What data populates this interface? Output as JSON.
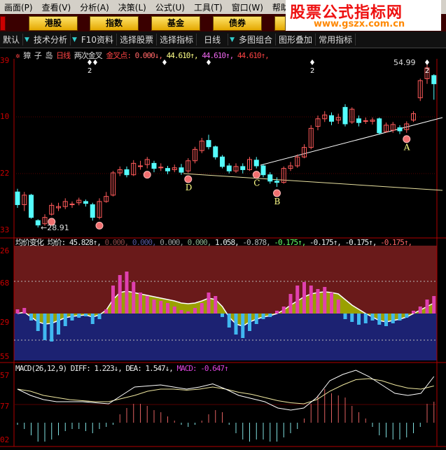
{
  "menu": [
    "画面(P)",
    "查看(V)",
    "分析(A)",
    "决策(L)",
    "公式(U)",
    "工具(T)",
    "窗口(W)",
    "帮助"
  ],
  "market_buttons": [
    "港股",
    "指数",
    "基金",
    "债券"
  ],
  "toolbar": [
    "默认",
    "技术分析",
    "F10资料",
    "选择股票",
    "选择指标",
    "日线",
    "多图组合",
    "图形叠加",
    "常用指标"
  ],
  "watermark": {
    "title": "股票公式指标网",
    "url": "www.gszx.com.cn"
  },
  "main_title": {
    "name": "獐 子 岛",
    "period": "日线",
    "indicator": "两次金叉",
    "label": "金叉点:",
    "v1": "0.000↓,",
    "v2": "44.610↑,",
    "v3": "44.610↑,",
    "v4": "44.610↑,"
  },
  "main_axis": [
    "39",
    "10",
    "22",
    "33"
  ],
  "annotations": {
    "high": "54.99",
    "low": "28.91",
    "points": [
      "D",
      "C",
      "B",
      "A"
    ],
    "count": "2"
  },
  "mid_title": {
    "name": "均价变化",
    "label": "均价:",
    "values": [
      "45.828↑,",
      "0.000,",
      "0.000,",
      "0.000,",
      "0.000,",
      "1.058,",
      "-0.878,",
      "-0.175↑,",
      "-0.175↑,",
      "-0.175↑,",
      "-0.175↑,"
    ]
  },
  "mid_axis": [
    "26",
    "68",
    "29",
    "55"
  ],
  "macd_title": {
    "name": "MACD(26,12,9)",
    "diff": "DIFF: 1.223↓,",
    "dea": "DEA: 1.547↓,",
    "macd": "MACD: -0.647↑"
  },
  "macd_axis": [
    "57",
    "77",
    "02"
  ],
  "colors": {
    "up": "#ff5a5a",
    "down": "#54fcfc",
    "frame": "#b00000",
    "mid_top": "#6a1a1a",
    "mid_bottom": "#1c2272",
    "area": "#9aa000"
  },
  "chart_data": [
    {
      "type": "candlestick",
      "ohlc": [
        [
          34.5,
          32.5,
          35,
          32
        ],
        [
          32.5,
          34,
          34.5,
          31.5
        ],
        [
          34,
          30.5,
          34.2,
          30.3
        ],
        [
          30,
          29.3,
          30.2,
          28.91
        ],
        [
          29.5,
          30.5,
          31,
          29.2
        ],
        [
          31,
          32.4,
          32.8,
          30.8
        ],
        [
          32,
          32.2,
          32.8,
          31.5
        ],
        [
          32.2,
          33,
          33.5,
          31.8
        ],
        [
          32.5,
          32.6,
          33,
          32
        ],
        [
          32.8,
          33.2,
          33.6,
          32.4
        ],
        [
          33,
          32.7,
          33.3,
          32.2
        ],
        [
          32.5,
          30.5,
          32.8,
          30
        ],
        [
          30.5,
          33,
          33.5,
          30.2
        ],
        [
          33,
          33.8,
          34.5,
          32.8
        ],
        [
          34,
          37.5,
          37.8,
          33.8
        ],
        [
          37.5,
          38,
          38.5,
          37
        ],
        [
          38,
          37.2,
          38.5,
          36.8
        ],
        [
          37.2,
          39,
          39.5,
          37
        ],
        [
          38.5,
          38.6,
          39.4,
          38
        ],
        [
          38.8,
          39.6,
          40,
          38.2
        ],
        [
          39,
          38.2,
          39.4,
          37.6
        ],
        [
          38.3,
          38.4,
          39,
          37.8
        ],
        [
          38.2,
          37.8,
          38.6,
          37.3
        ],
        [
          38,
          38.3,
          38.8,
          37.6
        ],
        [
          38.3,
          37.6,
          38.9,
          37.2
        ],
        [
          37.8,
          39.4,
          39.8,
          37.5
        ],
        [
          39.4,
          41.2,
          41.6,
          39
        ],
        [
          41,
          42.5,
          43,
          40.6
        ],
        [
          42.6,
          41.6,
          43.5,
          41.2
        ],
        [
          41.6,
          40,
          41.8,
          39.6
        ],
        [
          40,
          38.5,
          40.3,
          38.2
        ],
        [
          38.6,
          37.8,
          39,
          37.4
        ],
        [
          37.8,
          38.5,
          39,
          37.5
        ],
        [
          38.5,
          38,
          39,
          37.4
        ],
        [
          38,
          39.6,
          40,
          37.8
        ],
        [
          39.5,
          38.6,
          40,
          38.2
        ],
        [
          38.6,
          37.2,
          38.9,
          36.8
        ],
        [
          37.2,
          36.2,
          37.6,
          35.8
        ],
        [
          36.2,
          36,
          36.8,
          35.3
        ],
        [
          36,
          38.2,
          38.5,
          35.8
        ],
        [
          38.2,
          38.6,
          39.2,
          37.8
        ],
        [
          38.6,
          40,
          40.4,
          38.3
        ],
        [
          40,
          41.5,
          42,
          39.8
        ],
        [
          41.5,
          44.5,
          45,
          41.2
        ],
        [
          44.8,
          46,
          46.5,
          44.2
        ],
        [
          46,
          46.6,
          47.2,
          45.5
        ],
        [
          46.5,
          45.6,
          47,
          45
        ],
        [
          45.8,
          46.2,
          46.8,
          45.2
        ],
        [
          47.8,
          45.2,
          48.3,
          44.8
        ],
        [
          45.5,
          47.5,
          47.8,
          45.2
        ],
        [
          46,
          45.4,
          46.5,
          44.8
        ],
        [
          45.6,
          45.7,
          46.2,
          45.2
        ],
        [
          45.6,
          45.8,
          46.2,
          45.1
        ],
        [
          46,
          43.8,
          46.2,
          43.5
        ],
        [
          44,
          45,
          45.4,
          43.8
        ],
        [
          44.2,
          45.1,
          45.5,
          43.8
        ],
        [
          44.6,
          44.1,
          45,
          43.6
        ],
        [
          44.3,
          45.2,
          45.6,
          43.8
        ],
        [
          45.8,
          46.8,
          47.2,
          45.5
        ],
        [
          49.3,
          52,
          52.3,
          48.8
        ],
        [
          52.3,
          54,
          54.99,
          51.5
        ],
        [
          52.8,
          51.5,
          53,
          49
        ]
      ],
      "signal_candles": [
        5,
        12,
        19,
        25,
        35,
        38,
        57
      ],
      "marked_candles": {
        "D": 25,
        "C": 35,
        "B": 38,
        "A": 57
      }
    },
    {
      "type": "bar",
      "name": "均价变化",
      "area": [
        0,
        2,
        -5,
        -12,
        -15,
        -14,
        -10,
        -6,
        -4,
        -3,
        -2,
        -5,
        -2,
        5,
        20,
        30,
        32,
        30,
        28,
        26,
        24,
        22,
        20,
        18,
        15,
        14,
        15,
        18,
        22,
        20,
        10,
        -5,
        -15,
        -18,
        -12,
        -8,
        -5,
        -3,
        0,
        5,
        12,
        18,
        24,
        28,
        30,
        31,
        30,
        28,
        20,
        12,
        6,
        0,
        -5,
        -10,
        -12,
        -10,
        -8,
        -5,
        0,
        5,
        10,
        15
      ],
      "bars": [
        6,
        8,
        -10,
        -25,
        -38,
        -40,
        -30,
        -18,
        -10,
        -6,
        -4,
        -15,
        -8,
        6,
        40,
        55,
        60,
        45,
        30,
        25,
        20,
        18,
        15,
        10,
        5,
        3,
        8,
        15,
        30,
        25,
        -5,
        -20,
        -30,
        -35,
        -25,
        -15,
        -8,
        -5,
        4,
        10,
        28,
        40,
        45,
        40,
        35,
        38,
        30,
        20,
        -8,
        -12,
        -16,
        -14,
        -10,
        -16,
        -18,
        -14,
        -10,
        -6,
        4,
        10,
        20,
        25
      ]
    },
    {
      "type": "line",
      "name": "MACD",
      "diff": [
        1.6,
        1.3,
        1.1,
        1.0,
        1.0,
        1.0,
        0.95,
        0.9,
        1.3,
        1.7,
        1.75,
        1.8,
        1.7,
        1.6,
        1.7,
        1.85,
        1.6,
        1.3,
        1.15,
        1.0,
        0.7,
        0.6,
        0.7,
        1.2,
        2.0,
        2.3,
        2.5,
        2.2,
        1.8,
        1.4,
        1.3,
        1.4,
        2.2
      ],
      "dea": [
        1.6,
        1.5,
        1.3,
        1.2,
        1.1,
        1.05,
        1.0,
        1.0,
        1.15,
        1.3,
        1.5,
        1.6,
        1.6,
        1.55,
        1.6,
        1.7,
        1.6,
        1.45,
        1.35,
        1.2,
        1.05,
        0.95,
        0.9,
        1.1,
        1.5,
        1.8,
        2.05,
        2.1,
        2.0,
        1.8,
        1.65,
        1.6,
        1.75
      ],
      "hist": [
        -0.1,
        -0.3,
        -0.6,
        -0.9,
        -0.9,
        -0.8,
        -0.6,
        -0.4,
        -0.3,
        -0.3,
        -0.4,
        -0.5,
        -0.3,
        -0.2,
        -0.1,
        0.4,
        0.7,
        0.9,
        0.9,
        0.8,
        0.6,
        0.5,
        0.3,
        0.1,
        -0.1,
        -0.2,
        -0.1,
        0.1,
        0.4,
        0.6,
        0.5,
        -0.1,
        -0.5,
        -0.8,
        -0.9,
        -0.8,
        -0.8,
        -0.9,
        -0.9,
        -0.7,
        -0.5,
        -0.3,
        0.2,
        0.9,
        1.3,
        1.6,
        1.4,
        1.3,
        1.2,
        0.8,
        0.5,
        0.2,
        -0.2,
        -0.6,
        -0.7,
        -0.8,
        -0.8,
        -0.7,
        -0.5,
        -0.2,
        0.9,
        1.0
      ]
    }
  ]
}
